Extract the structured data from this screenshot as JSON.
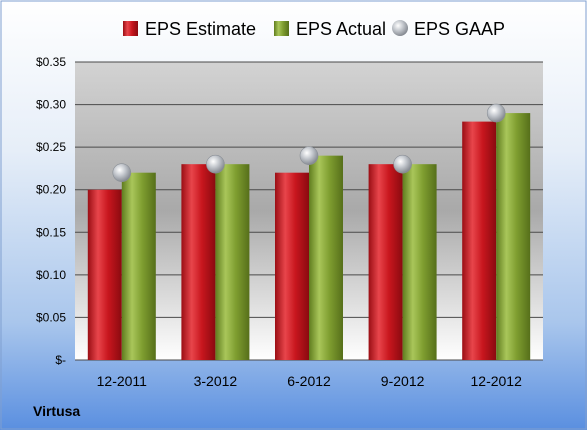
{
  "company": "Virtusa",
  "chart_data": {
    "type": "bar",
    "title": "",
    "xlabel": "",
    "ylabel": "",
    "categories": [
      "12-2011",
      "3-2012",
      "6-2012",
      "9-2012",
      "12-2012"
    ],
    "series": [
      {
        "name": "EPS Estimate",
        "kind": "bar",
        "color": "#c0141c",
        "values": [
          0.2,
          0.23,
          0.22,
          0.23,
          0.28
        ]
      },
      {
        "name": "EPS Actual",
        "kind": "bar",
        "color": "#7a9a2c",
        "values": [
          0.22,
          0.23,
          0.24,
          0.23,
          0.29
        ]
      },
      {
        "name": "EPS GAAP",
        "kind": "marker",
        "color": "#b8bcc4",
        "values": [
          0.22,
          0.23,
          0.24,
          0.23,
          0.29
        ]
      }
    ],
    "ylim": [
      0,
      0.35
    ],
    "yticks": [
      0,
      0.05,
      0.1,
      0.15,
      0.2,
      0.25,
      0.3,
      0.35
    ],
    "ytick_labels": [
      "$-",
      "$0.05",
      "$0.10",
      "$0.15",
      "$0.20",
      "$0.25",
      "$0.30",
      "$0.35"
    ],
    "grid": true,
    "legend": "top"
  }
}
